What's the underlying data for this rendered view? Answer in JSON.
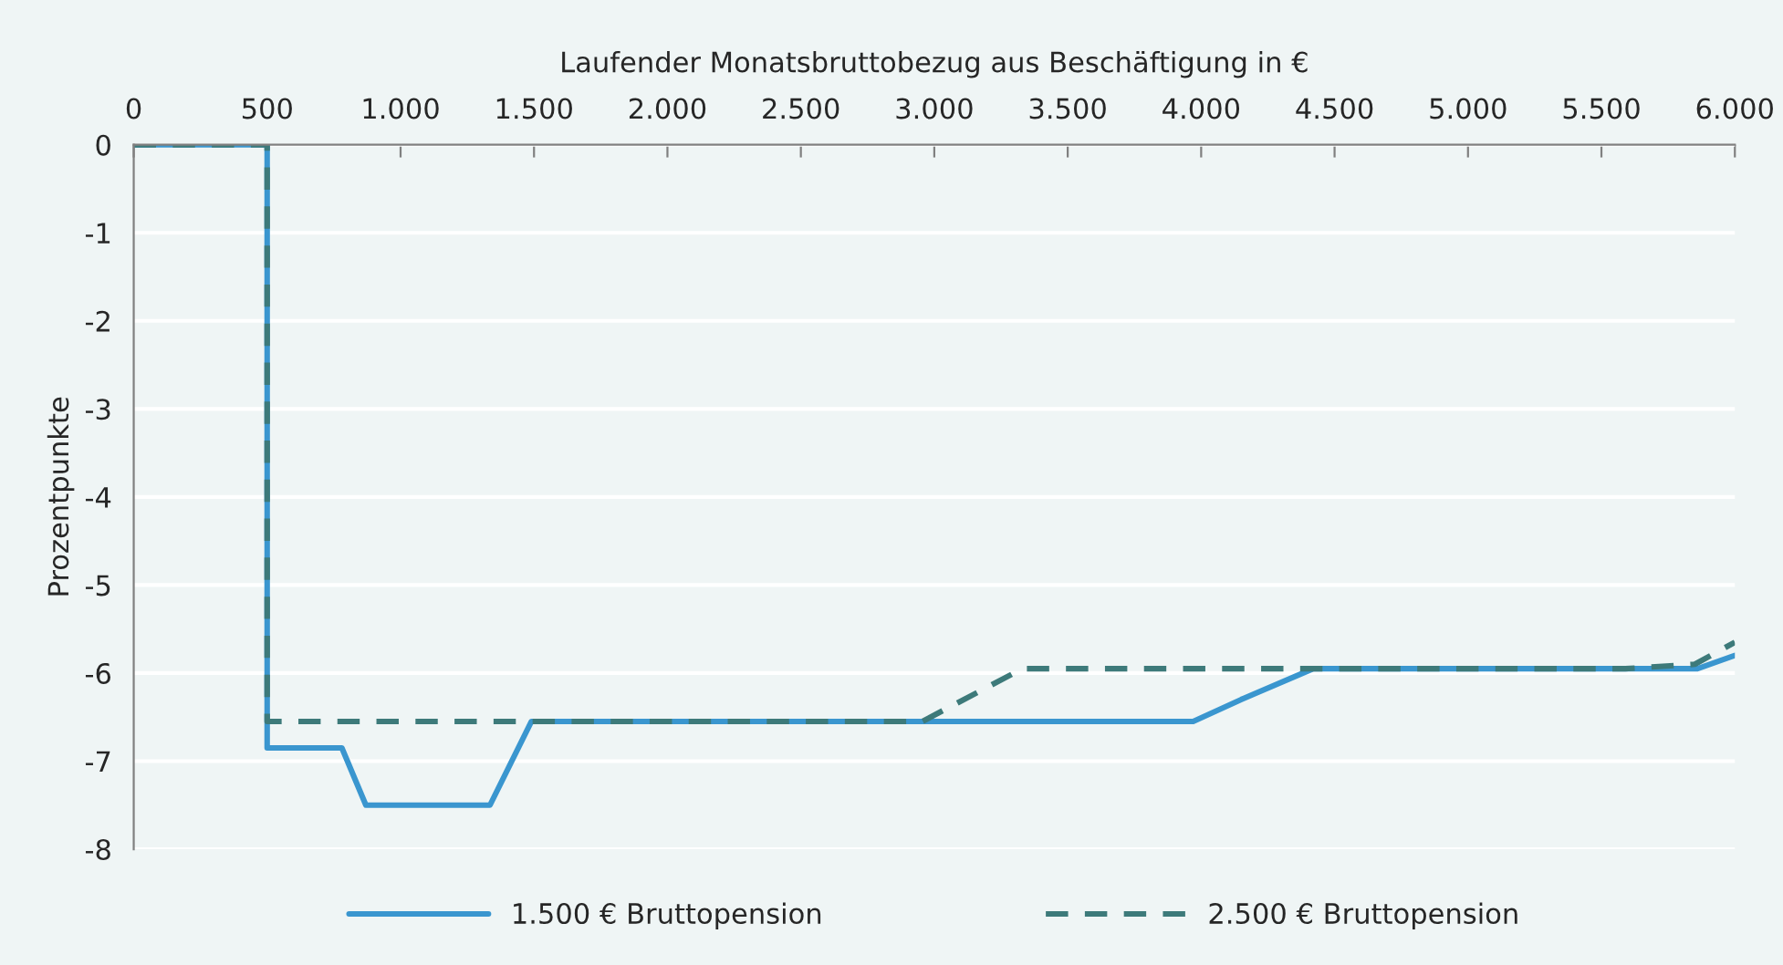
{
  "chart_data": {
    "type": "line",
    "xlabel": "Laufender Monatsbruttobezug aus Beschäftigung in €",
    "ylabel": "Prozentpunkte",
    "xlim": [
      0,
      6000
    ],
    "ylim": [
      -8,
      0
    ],
    "xticks": [
      0,
      {
        "value": 500,
        "label": "500"
      },
      {
        "value": 1000,
        "label": "1.000"
      },
      {
        "value": 1500,
        "label": "1.500"
      },
      {
        "value": 2000,
        "label": "2.000"
      },
      {
        "value": 2500,
        "label": "2.500"
      },
      {
        "value": 3000,
        "label": "3.000"
      },
      {
        "value": 3500,
        "label": "3.500"
      },
      {
        "value": 4000,
        "label": "4.000"
      },
      {
        "value": 4500,
        "label": "4.500"
      },
      {
        "value": 5000,
        "label": "5.000"
      },
      {
        "value": 5500,
        "label": "5.500"
      },
      {
        "value": 6000,
        "label": "6.000"
      }
    ],
    "yticks": [
      0,
      -1,
      -2,
      -3,
      -4,
      -5,
      -6,
      -7,
      -8
    ],
    "grid": "y",
    "legend": "bottom",
    "series": [
      {
        "name": "1.500 € Bruttopension",
        "color": "#3a96cf",
        "line_style": "solid",
        "x": [
          0,
          500,
          500,
          780,
          870,
          1335,
          1490,
          3970,
          4150,
          4420,
          5860,
          6000
        ],
        "values": [
          0,
          0,
          -6.85,
          -6.85,
          -7.5,
          -7.5,
          -6.55,
          -6.55,
          -6.3,
          -5.95,
          -5.95,
          -5.8
        ]
      },
      {
        "name": "2.500 € Bruttopension",
        "color": "#3d7a7a",
        "line_style": "dashed",
        "x": [
          0,
          500,
          500,
          2955,
          3330,
          5590,
          5850,
          6000
        ],
        "values": [
          0,
          0,
          -6.55,
          -6.55,
          -5.95,
          -5.95,
          -5.9,
          -5.65
        ]
      }
    ]
  }
}
